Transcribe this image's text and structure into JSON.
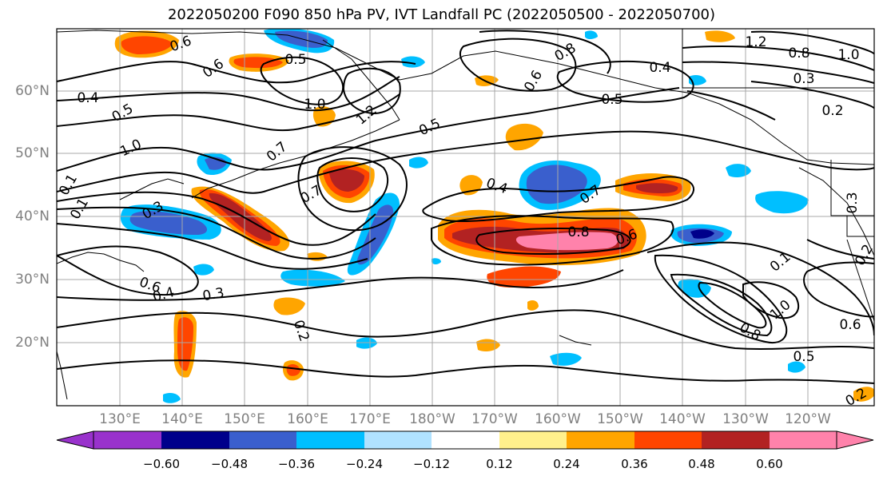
{
  "title": "2022050200 F090 850 hPa PV, IVT Landfall PC (2022050500 - 2022050700)",
  "lat_labels": [
    "60°N",
    "50°N",
    "40°N",
    "30°N",
    "20°N"
  ],
  "lon_labels": [
    "130°E",
    "140°E",
    "150°E",
    "160°E",
    "170°E",
    "180°W",
    "170°W",
    "160°W",
    "150°W",
    "140°W",
    "130°W",
    "120°W"
  ],
  "colorbar": {
    "ticks": [
      "−0.60",
      "−0.48",
      "−0.36",
      "−0.24",
      "−0.12",
      "0.12",
      "0.24",
      "0.36",
      "0.48",
      "0.60"
    ],
    "colors": [
      "#9932cc",
      "#00008b",
      "#3a5fcd",
      "#00bfff",
      "#b0e2ff",
      "#ffffff",
      "#fff08c",
      "#ffa500",
      "#ff4500",
      "#b22222",
      "#ff82ab"
    ]
  },
  "contour_labels": [
    "0.4",
    "0.5",
    "0.6",
    "0.6",
    "0.5",
    "1.0",
    "1.2",
    "0.8",
    "0.6",
    "0.4",
    "0.5",
    "1.2",
    "0.8",
    "1.0",
    "0.3",
    "0.2",
    "0.5",
    "1.0",
    "0.7",
    "0.4",
    "0.7",
    "0.8",
    "0.6",
    "0.3",
    "0.6",
    "0.4",
    "0.3",
    "0.2",
    "1.0",
    "0.8",
    "0.6",
    "0.5",
    "0.2",
    "0.7",
    "0.2",
    "0.1",
    "0.1",
    "0.1",
    "0.3"
  ]
}
